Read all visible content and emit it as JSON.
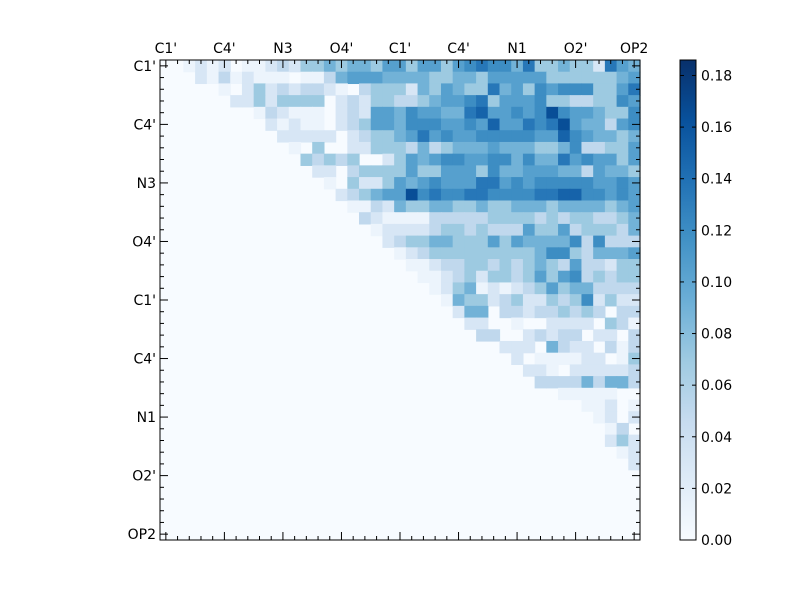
{
  "chart_data": {
    "type": "heatmap",
    "title": "",
    "xlabel": "",
    "ylabel": "",
    "x_tick_labels": [
      "C1'",
      "C4'",
      "N3",
      "O4'",
      "C1'",
      "C4'",
      "N1",
      "O2'",
      "OP2"
    ],
    "y_tick_labels": [
      "C1'",
      "C4'",
      "N3",
      "O4'",
      "C1'",
      "C4'",
      "N1",
      "O2'",
      "OP2"
    ],
    "grid_size": 41,
    "major_tick_every": 5,
    "colormap": [
      "#f7fbff",
      "#deebf7",
      "#c6dbef",
      "#9ecae1",
      "#6baed6",
      "#4292c6",
      "#2171b5",
      "#08519c",
      "#08306b"
    ],
    "colorbar": {
      "vmin": 0.0,
      "vmax": 0.186,
      "ticks": [
        0.0,
        0.02,
        0.04,
        0.06,
        0.08,
        0.1,
        0.12,
        0.14,
        0.16,
        0.18
      ],
      "tick_labels": [
        "0.00",
        "0.02",
        "0.04",
        "0.06",
        "0.08",
        "0.10",
        "0.12",
        "0.14",
        "0.16",
        "0.18"
      ]
    },
    "matrix_rows": [
      "..abab.aabcbddedeedffdffdfghggehddeddbhfeh",
      "...bacabaaa.aacefffeeeeddeedfffffddddddeff",
      ".....a.bdbcbccba.cdddbedfeddhefdgfgggddfhgff",
      "......bbdbdddd.bcbddccdeffghdfffgddccddgfh",
      "........acbaaa.bcbffegffeehiffgfgjgffeddgjj",
      ".........babaa.bcdffegggffgfiffhghjfeecfghij",
      "..........bbbbb.bcddefhfgffgggggffigfeedefgh",
      "...........a.d..bbdddcecdeeefeeeddegccddfgg",
      "............dcdcd..bdfefggffggegeehfgffdfgfi",
      ".............bb.cddddfddfffdgeefffeecfeedeff",
      "..............a.dbbdfefgfffhhfgfgggggffgfjjh",
      "...............bcdeffjghgghhgggghhiiggfgffkk",
      "................aacbeddeeddeddeeedeeeedefgg",
      ".................cbaaaacccccddddcdcddccdefg",
      "..................abbbbcddcdcccfddfcdddcefg",
      "...................bcddeedddfdfeeeegcgcccddf",
      "....................abcdddddddddeggdceeefgf",
      ".....................aabccddcdcdedcfccbddeff",
      "......................aabcdbddcdfdfgcdcddef",
      ".......................abdeababcdfdeeccccbdd",
      "........................aeddbcdbbdcdgbdbbde",
      ".........................bee.ccbccdcdc.ccbd",
      "..........................bb..a..bbbb.dca.bc",
      "...........................cc..bcbcc.bb.c.bc",
      ".............................bbb.ecbb.cac.bd",
      "..............................b.aaaabb.adac",
      "...............................bba.bbbbbc.cc",
      "................................cccceceecedd",
      "..................................aaaaa..bcd",
      "....................................aab.ade",
      ".....................................ab.bde",
      "......................................ac.bdf",
      "......................................bdbcde",
      ".......................................abcdf",
      "........................................bced",
      ".........................................bde",
      "..........................................hf",
      "...........................................e",
      "...........................................b",
      "...........................................a",
      ".............................................."
    ]
  }
}
